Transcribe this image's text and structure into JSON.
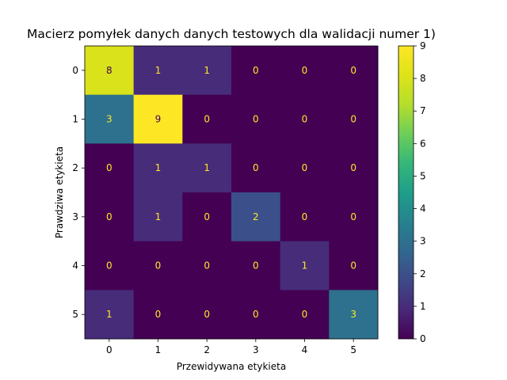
{
  "chart_data": {
    "type": "heatmap",
    "title": "Macierz pomyłek danych danych testowych dla walidacji numer 1)",
    "xlabel": "Przewidywana etykieta",
    "ylabel": "Prawdziwa etykieta",
    "x_categories": [
      "0",
      "1",
      "2",
      "3",
      "4",
      "5"
    ],
    "y_categories": [
      "0",
      "1",
      "2",
      "3",
      "4",
      "5"
    ],
    "values": [
      [
        8,
        1,
        1,
        0,
        0,
        0
      ],
      [
        3,
        9,
        0,
        0,
        0,
        0
      ],
      [
        0,
        1,
        1,
        0,
        0,
        0
      ],
      [
        0,
        1,
        0,
        2,
        0,
        0
      ],
      [
        0,
        0,
        0,
        0,
        1,
        0
      ],
      [
        1,
        0,
        0,
        0,
        0,
        3
      ]
    ],
    "colorbar": {
      "min": 0,
      "max": 9,
      "ticks": [
        "0",
        "1",
        "2",
        "3",
        "4",
        "5",
        "6",
        "7",
        "8",
        "9"
      ]
    },
    "colormap": "viridis",
    "text_colors": {
      "on_dark": "#fde725",
      "on_light": "#440154"
    },
    "grid": false
  }
}
